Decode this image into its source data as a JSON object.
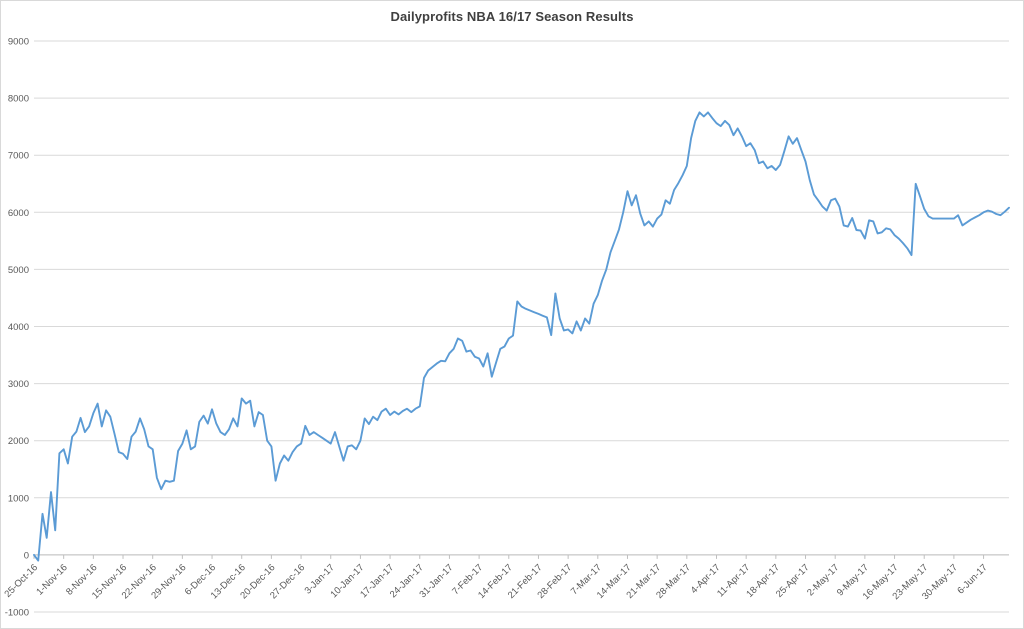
{
  "chart_data": {
    "type": "line",
    "title": "Dailyprofits NBA 16/17 Season Results",
    "legend": "none",
    "grid": "horizontal",
    "line_color": "#5B9BD5",
    "axis_label_color": "#595959",
    "gridline_color": "#D9D9D9",
    "axis_line_color": "#BFBFBF",
    "title_color": "#404040",
    "ylim": [
      -1000,
      9000
    ],
    "ytick_step": 1000,
    "y_tick_labels": [
      "9000",
      "8000",
      "7000",
      "6000",
      "5000",
      "4000",
      "3000",
      "2000",
      "1000",
      "0",
      "-1000"
    ],
    "x_start_date": "25-Oct-16",
    "x_interval": "daily",
    "x_tick_every_days": 7,
    "x_tick_labels": [
      "25-Oct-16",
      "1-Nov-16",
      "8-Nov-16",
      "15-Nov-16",
      "22-Nov-16",
      "29-Nov-16",
      "6-Dec-16",
      "13-Dec-16",
      "20-Dec-16",
      "27-Dec-16",
      "3-Jan-17",
      "10-Jan-17",
      "17-Jan-17",
      "24-Jan-17",
      "31-Jan-17",
      "7-Feb-17",
      "14-Feb-17",
      "21-Feb-17",
      "28-Feb-17",
      "7-Mar-17",
      "14-Mar-17",
      "21-Mar-17",
      "28-Mar-17",
      "4-Apr-17",
      "11-Apr-17",
      "18-Apr-17",
      "25-Apr-17",
      "2-May-17",
      "9-May-17",
      "16-May-17",
      "23-May-17",
      "30-May-17",
      "6-Jun-17"
    ],
    "values": [
      0,
      -100,
      720,
      300,
      1100,
      430,
      1780,
      1850,
      1600,
      2070,
      2160,
      2400,
      2150,
      2250,
      2480,
      2650,
      2250,
      2530,
      2420,
      2120,
      1800,
      1770,
      1680,
      2070,
      2160,
      2390,
      2200,
      1900,
      1850,
      1350,
      1150,
      1300,
      1280,
      1300,
      1820,
      1950,
      2180,
      1850,
      1900,
      2330,
      2440,
      2300,
      2550,
      2300,
      2150,
      2100,
      2200,
      2390,
      2250,
      2740,
      2650,
      2700,
      2250,
      2500,
      2450,
      2000,
      1900,
      1300,
      1600,
      1740,
      1650,
      1800,
      1900,
      1950,
      2260,
      2100,
      2150,
      2100,
      2050,
      2000,
      1950,
      2150,
      1900,
      1650,
      1900,
      1920,
      1850,
      2000,
      2390,
      2290,
      2420,
      2360,
      2510,
      2560,
      2450,
      2510,
      2460,
      2520,
      2560,
      2500,
      2560,
      2600,
      3100,
      3230,
      3290,
      3350,
      3400,
      3390,
      3530,
      3610,
      3790,
      3750,
      3560,
      3580,
      3470,
      3440,
      3300,
      3530,
      3120,
      3370,
      3610,
      3650,
      3790,
      3840,
      4440,
      4350,
      4310,
      4280,
      4250,
      4220,
      4190,
      4160,
      3850,
      4580,
      4140,
      3930,
      3950,
      3880,
      4090,
      3930,
      4140,
      4050,
      4400,
      4550,
      4800,
      5000,
      5300,
      5500,
      5700,
      6000,
      6370,
      6120,
      6300,
      5980,
      5770,
      5840,
      5750,
      5890,
      5960,
      6210,
      6150,
      6390,
      6510,
      6650,
      6810,
      7300,
      7600,
      7750,
      7680,
      7750,
      7650,
      7560,
      7510,
      7600,
      7530,
      7350,
      7470,
      7330,
      7160,
      7210,
      7090,
      6860,
      6890,
      6770,
      6810,
      6740,
      6830,
      7070,
      7330,
      7200,
      7300,
      7090,
      6890,
      6560,
      6310,
      6210,
      6100,
      6030,
      6210,
      6240,
      6100,
      5770,
      5750,
      5900,
      5690,
      5680,
      5540,
      5860,
      5840,
      5630,
      5650,
      5720,
      5700,
      5600,
      5540,
      5460,
      5370,
      5250,
      6500,
      6280,
      6060,
      5930,
      5890,
      5890,
      5890,
      5890,
      5890,
      5890,
      5950,
      5770,
      5820,
      5870,
      5910,
      5950,
      6000,
      6030,
      6010,
      5970,
      5950,
      6010,
      6080
    ]
  }
}
